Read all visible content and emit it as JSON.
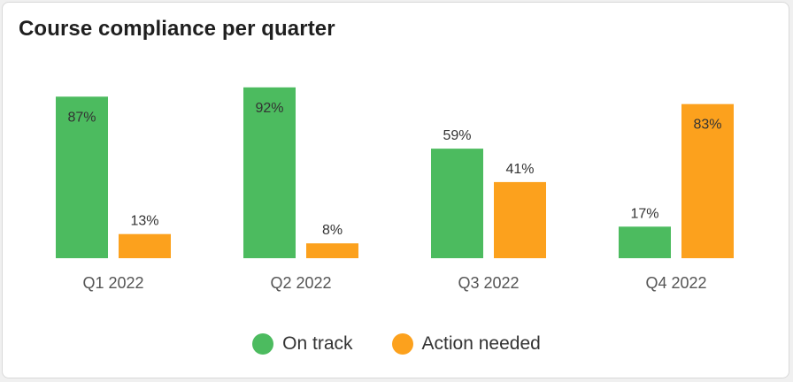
{
  "title": "Course compliance per quarter",
  "colors": {
    "on_track": "#4cbb5f",
    "action_needed": "#fca11d"
  },
  "legend": [
    {
      "label": "On track",
      "color": "#4cbb5f"
    },
    {
      "label": "Action needed",
      "color": "#fca11d"
    }
  ],
  "chart_data": {
    "type": "bar",
    "title": "Course compliance per quarter",
    "xlabel": "",
    "ylabel": "",
    "categories": [
      "Q1 2022",
      "Q2 2022",
      "Q3 2022",
      "Q4 2022"
    ],
    "series": [
      {
        "name": "On track",
        "values": [
          87,
          92,
          59,
          17
        ],
        "labels": [
          "87%",
          "92%",
          "59%",
          "17%"
        ],
        "color": "#4cbb5f"
      },
      {
        "name": "Action needed",
        "values": [
          13,
          8,
          41,
          83
        ],
        "labels": [
          "13%",
          "8%",
          "41%",
          "83%"
        ],
        "color": "#fca11d"
      }
    ],
    "ylim": [
      0,
      100
    ],
    "grid": false,
    "legend_position": "bottom-center"
  }
}
